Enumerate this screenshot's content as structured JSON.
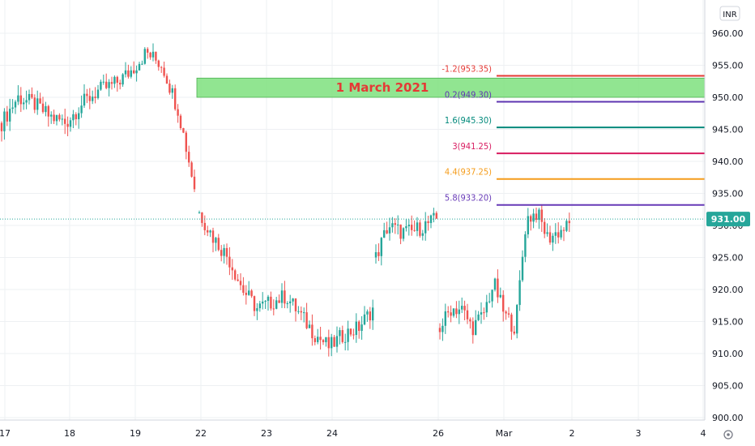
{
  "chart_data": {
    "type": "candlestick",
    "currency": "INR",
    "ylim": [
      899,
      963
    ],
    "y_ticks": [
      "960.00",
      "955.00",
      "950.00",
      "945.00",
      "940.00",
      "935.00",
      "930.00",
      "925.00",
      "920.00",
      "915.00",
      "910.00",
      "905.00",
      "900.00"
    ],
    "y_tick_values": [
      960,
      955,
      950,
      945,
      940,
      935,
      930,
      925,
      920,
      915,
      910,
      905,
      900
    ],
    "x_ticks": [
      "17",
      "18",
      "19",
      "22",
      "23",
      "24",
      "26",
      "Mar",
      "2",
      "3",
      "4"
    ],
    "last_price": {
      "value": 931.0,
      "label": "931.00",
      "color": "#26a69a"
    },
    "levels": [
      {
        "label": "-1.2(953.35)",
        "value": 953.35,
        "color": "#e53935"
      },
      {
        "label": "0.2(949.30)",
        "value": 949.3,
        "color": "#5e35b1"
      },
      {
        "label": "1.6(945.30)",
        "value": 945.3,
        "color": "#00897b"
      },
      {
        "label": "3(941.25)",
        "value": 941.25,
        "color": "#d81b60"
      },
      {
        "label": "4.4(937.25)",
        "value": 937.25,
        "color": "#f59c1a"
      },
      {
        "label": "5.8(933.20)",
        "value": 933.2,
        "color": "#673ab7"
      }
    ],
    "zone": {
      "label": "1 March 2021",
      "top": 953.0,
      "bottom": 950.0,
      "fill": "#7ee17e",
      "text_color": "#e53935"
    },
    "up_color": "#26a69a",
    "down_color": "#ef5350",
    "segments": [
      {
        "points": [
          [
            946,
            954
          ],
          [
            950,
            951
          ],
          [
            949,
            952
          ],
          [
            947,
            952
          ],
          [
            946,
            948
          ],
          [
            949,
            950
          ],
          [
            951,
            951
          ],
          [
            952,
            954
          ],
          [
            954,
            956
          ],
          [
            957,
            957
          ],
          [
            955,
            952
          ],
          [
            948,
            942
          ],
          [
            936,
            933
          ]
        ]
      },
      {
        "points": [
          [
            932,
            931
          ],
          [
            928,
            926
          ],
          [
            925,
            924
          ],
          [
            920,
            919
          ],
          [
            917,
            915
          ],
          [
            918,
            917
          ],
          [
            919,
            918
          ],
          [
            916,
            914
          ],
          [
            913,
            912
          ],
          [
            911,
            910
          ],
          [
            913,
            912
          ],
          [
            914,
            916
          ],
          [
            917,
            912
          ]
        ]
      },
      {
        "points": [
          [
            925,
            928
          ],
          [
            930,
            931
          ],
          [
            929,
            930
          ],
          [
            929,
            930
          ],
          [
            930,
            931
          ],
          [
            931,
            929
          ]
        ]
      },
      {
        "points": [
          [
            914,
            918
          ],
          [
            917,
            915
          ],
          [
            917,
            916
          ],
          [
            914,
            913
          ],
          [
            916,
            919
          ],
          [
            921,
            918
          ],
          [
            916,
            908
          ],
          [
            914,
            925
          ],
          [
            931,
            933
          ],
          [
            932,
            930
          ],
          [
            928,
            930
          ],
          [
            929,
            929
          ],
          [
            930,
            931
          ]
        ]
      }
    ]
  }
}
